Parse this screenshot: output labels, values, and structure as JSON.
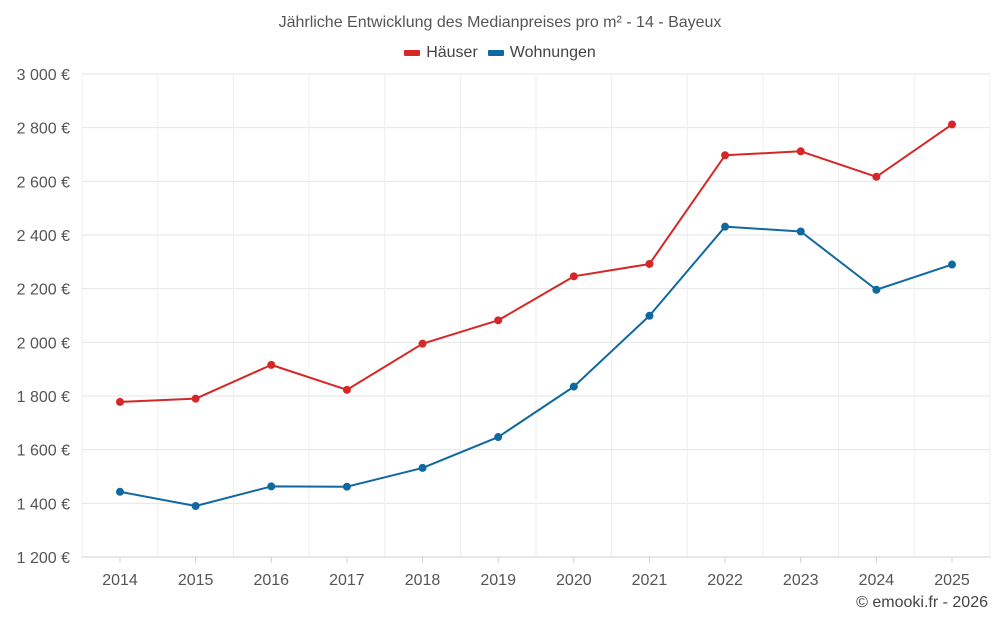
{
  "chart_data": {
    "type": "line",
    "title": "Jährliche Entwicklung des Medianpreises pro m² - 14 - Bayeux",
    "categories": [
      "2014",
      "2015",
      "2016",
      "2017",
      "2018",
      "2019",
      "2020",
      "2021",
      "2022",
      "2023",
      "2024",
      "2025"
    ],
    "series": [
      {
        "name": "Häuser",
        "color": "#d62728",
        "values": [
          1778,
          1790,
          1916,
          1823,
          1995,
          2082,
          2246,
          2292,
          2697,
          2712,
          2617,
          2812
        ]
      },
      {
        "name": "Wohnungen",
        "color": "#0f69a0",
        "values": [
          1443,
          1390,
          1463,
          1462,
          1532,
          1647,
          1835,
          2099,
          2431,
          2413,
          2196,
          2290
        ]
      }
    ],
    "ylim": [
      1200,
      3000
    ],
    "yticks": [
      1200,
      1400,
      1600,
      1800,
      2000,
      2200,
      2400,
      2600,
      2800,
      3000
    ],
    "ytick_labels": [
      "1 200 €",
      "1 400 €",
      "1 600 €",
      "1 800 €",
      "2 000 €",
      "2 200 €",
      "2 400 €",
      "2 600 €",
      "2 800 €",
      "3 000 €"
    ],
    "grid": true,
    "legend_position": "top-center"
  },
  "credit": "© emooki.fr - 2026"
}
